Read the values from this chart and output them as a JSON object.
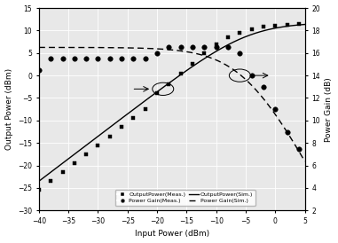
{
  "xlabel": "Input Power (dBm)",
  "ylabel_left": "Output Power (dBm)",
  "ylabel_right": "Power Gain (dB)",
  "xlim": [
    -40,
    5
  ],
  "ylim_left": [
    -30,
    15
  ],
  "ylim_right": [
    2,
    20
  ],
  "xticks": [
    -40,
    -35,
    -30,
    -25,
    -20,
    -15,
    -10,
    -5,
    0,
    5
  ],
  "yticks_left": [
    -30,
    -25,
    -20,
    -15,
    -10,
    -5,
    0,
    5,
    10,
    15
  ],
  "yticks_right": [
    2,
    4,
    6,
    8,
    10,
    12,
    14,
    16,
    18,
    20
  ],
  "meas_output_x": [
    -40,
    -38,
    -36,
    -34,
    -32,
    -30,
    -28,
    -26,
    -24,
    -22,
    -20,
    -18,
    -16,
    -14,
    -12,
    -10,
    -8,
    -6,
    -4,
    -2,
    0,
    2,
    4
  ],
  "meas_output_y": [
    -25.5,
    -23.5,
    -21.5,
    -19.5,
    -17.5,
    -15.5,
    -13.5,
    -11.5,
    -9.5,
    -7.5,
    -4.0,
    -2.0,
    0.5,
    2.5,
    5.0,
    7.0,
    8.5,
    9.5,
    10.2,
    10.8,
    11.0,
    11.2,
    11.5
  ],
  "meas_gain_x": [
    -40,
    -38,
    -36,
    -34,
    -32,
    -30,
    -28,
    -26,
    -24,
    -22,
    -20,
    -18,
    -16,
    -14,
    -12,
    -10,
    -8,
    -6,
    -4,
    -2,
    0,
    2,
    4
  ],
  "meas_gain_y": [
    14.5,
    15.5,
    15.5,
    15.5,
    15.5,
    15.5,
    15.5,
    15.5,
    15.5,
    15.5,
    16.0,
    16.5,
    16.5,
    16.5,
    16.5,
    16.5,
    16.5,
    16.0,
    14.0,
    13.0,
    11.0,
    9.0,
    7.5
  ],
  "background_color": "#e8e8e8",
  "grid_color": "#ffffff",
  "marker_size": 3.5
}
